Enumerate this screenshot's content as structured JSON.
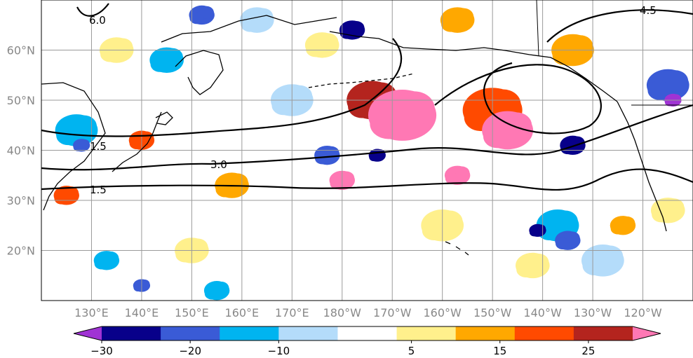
{
  "map": {
    "lon_range": [
      120,
      250
    ],
    "lat_range": [
      10,
      70
    ],
    "lat_ticks": [
      {
        "value": 60,
        "label": "60°N"
      },
      {
        "value": 50,
        "label": "50°N"
      },
      {
        "value": 40,
        "label": "40°N"
      },
      {
        "value": 30,
        "label": "30°N"
      },
      {
        "value": 20,
        "label": "20°N"
      }
    ],
    "lon_ticks": [
      {
        "value": 130,
        "label": "130°E"
      },
      {
        "value": 140,
        "label": "140°E"
      },
      {
        "value": 150,
        "label": "150°E"
      },
      {
        "value": 160,
        "label": "160°E"
      },
      {
        "value": 170,
        "label": "170°E"
      },
      {
        "value": 180,
        "label": "180°W"
      },
      {
        "value": 190,
        "label": "170°W"
      },
      {
        "value": 200,
        "label": "160°W"
      },
      {
        "value": 210,
        "label": "150°W"
      },
      {
        "value": 220,
        "label": "140°W"
      },
      {
        "value": 230,
        "label": "130°W"
      },
      {
        "value": 240,
        "label": "120°W"
      }
    ],
    "contour_labels": [
      "6.0",
      "3.0",
      "1.5",
      "1.5",
      "4.5"
    ]
  },
  "colorbar": {
    "colors": [
      "#a033d4",
      "#08008a",
      "#3a5bd6",
      "#00b4f0",
      "#b4dcfa",
      "#ffffff",
      "#fff08c",
      "#ffa800",
      "#ff4a00",
      "#b4241e",
      "#ff78b4"
    ],
    "range": [
      -35,
      35
    ],
    "tick_values": [
      -30,
      -20,
      -10,
      5,
      15,
      25
    ],
    "tick_labels": [
      "−30",
      "−20",
      "−10",
      "5",
      "15",
      "25"
    ]
  },
  "anomaly_patches": [
    {
      "lon": 192,
      "lat": 47,
      "category": 10,
      "size": 8
    },
    {
      "lon": 213,
      "lat": 44,
      "category": 10,
      "size": 6
    },
    {
      "lon": 180,
      "lat": 34,
      "category": 10,
      "size": 3
    },
    {
      "lon": 203,
      "lat": 35,
      "category": 10,
      "size": 3
    },
    {
      "lon": 186,
      "lat": 50,
      "category": 9,
      "size": 6
    },
    {
      "lon": 210,
      "lat": 48,
      "category": 8,
      "size": 7
    },
    {
      "lon": 140,
      "lat": 42,
      "category": 8,
      "size": 3
    },
    {
      "lon": 125,
      "lat": 31,
      "category": 8,
      "size": 3
    },
    {
      "lon": 158,
      "lat": 33,
      "category": 7,
      "size": 4
    },
    {
      "lon": 226,
      "lat": 60,
      "category": 7,
      "size": 5
    },
    {
      "lon": 200,
      "lat": 25,
      "category": 6,
      "size": 5
    },
    {
      "lon": 245,
      "lat": 28,
      "category": 6,
      "size": 4
    },
    {
      "lon": 150,
      "lat": 20,
      "category": 6,
      "size": 4
    },
    {
      "lon": 218,
      "lat": 17,
      "category": 6,
      "size": 4
    },
    {
      "lon": 155,
      "lat": 12,
      "category": 3,
      "size": 3
    },
    {
      "lon": 223,
      "lat": 25,
      "category": 3,
      "size": 5
    },
    {
      "lon": 219,
      "lat": 24,
      "category": 1,
      "size": 2
    },
    {
      "lon": 245,
      "lat": 53,
      "category": 2,
      "size": 5
    },
    {
      "lon": 246,
      "lat": 50,
      "category": 0,
      "size": 2
    },
    {
      "lon": 152,
      "lat": 67,
      "category": 2,
      "size": 3
    },
    {
      "lon": 127,
      "lat": 44,
      "category": 3,
      "size": 5
    },
    {
      "lon": 128,
      "lat": 41,
      "category": 2,
      "size": 2
    },
    {
      "lon": 177,
      "lat": 39,
      "category": 2,
      "size": 3
    },
    {
      "lon": 187,
      "lat": 39,
      "category": 1,
      "size": 2
    },
    {
      "lon": 226,
      "lat": 41,
      "category": 1,
      "size": 3
    },
    {
      "lon": 182,
      "lat": 64,
      "category": 1,
      "size": 3
    },
    {
      "lon": 145,
      "lat": 58,
      "category": 3,
      "size": 4
    },
    {
      "lon": 225,
      "lat": 22,
      "category": 2,
      "size": 3
    },
    {
      "lon": 133,
      "lat": 18,
      "category": 3,
      "size": 3
    },
    {
      "lon": 140,
      "lat": 13,
      "category": 2,
      "size": 2
    },
    {
      "lon": 232,
      "lat": 18,
      "category": 4,
      "size": 5
    },
    {
      "lon": 163,
      "lat": 66,
      "category": 4,
      "size": 4
    },
    {
      "lon": 170,
      "lat": 50,
      "category": 4,
      "size": 5
    },
    {
      "lon": 135,
      "lat": 60,
      "category": 6,
      "size": 4
    },
    {
      "lon": 176,
      "lat": 61,
      "category": 6,
      "size": 4
    },
    {
      "lon": 203,
      "lat": 66,
      "category": 7,
      "size": 4
    },
    {
      "lon": 236,
      "lat": 25,
      "category": 7,
      "size": 3
    }
  ]
}
